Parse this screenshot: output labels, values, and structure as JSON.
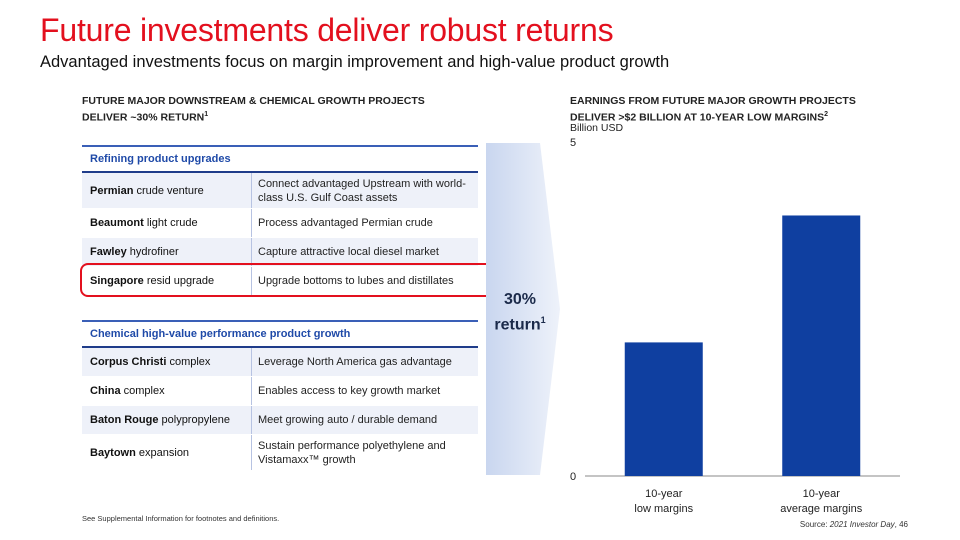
{
  "title": "Future investments deliver robust returns",
  "subtitle": "Advantaged investments focus on margin improvement and high-value product growth",
  "left": {
    "heading_line1": "FUTURE MAJOR DOWNSTREAM & CHEMICAL GROWTH PROJECTS",
    "heading_line2": "DELIVER ~30% RETURN",
    "heading_sup": "1",
    "refining": {
      "header": "Refining product upgrades",
      "rows": [
        {
          "name": "Permian",
          "suffix": " crude venture",
          "desc": "Connect advantaged Upstream with world-class U.S. Gulf Coast assets"
        },
        {
          "name": "Beaumont",
          "suffix": " light crude",
          "desc": "Process advantaged Permian crude"
        },
        {
          "name": "Fawley",
          "suffix": " hydrofiner",
          "desc": "Capture attractive local diesel market"
        },
        {
          "name": "Singapore",
          "suffix": " resid upgrade",
          "desc": "Upgrade bottoms to lubes and distillates"
        }
      ]
    },
    "chemical": {
      "header": "Chemical high-value performance product growth",
      "rows": [
        {
          "name": "Corpus Christi",
          "suffix": " complex",
          "desc": "Leverage North America gas advantage"
        },
        {
          "name": "China",
          "suffix": " complex",
          "desc": "Enables access to key growth market"
        },
        {
          "name": "Baton Rouge",
          "suffix": " polypropylene",
          "desc": "Meet growing auto / durable demand"
        },
        {
          "name": "Baytown",
          "suffix": " expansion",
          "desc": "Sustain performance polyethylene and Vistamaxx™ growth"
        }
      ]
    },
    "return_value": "30%",
    "return_label": "return",
    "return_sup": "1"
  },
  "right": {
    "heading_line1": "EARNINGS FROM FUTURE MAJOR GROWTH PROJECTS",
    "heading_line2": "DELIVER >$2 BILLION AT 10-YEAR LOW MARGINS",
    "heading_sup": "2",
    "unit": "Billion USD"
  },
  "chart_data": {
    "type": "bar",
    "categories": [
      [
        "10-year",
        "low margins"
      ],
      [
        "10-year",
        "average margins"
      ]
    ],
    "values": [
      2.0,
      3.9
    ],
    "ylim": [
      0,
      5
    ],
    "yticks": [
      "0",
      "5"
    ],
    "bar_color": "#0f3fa0",
    "grid": false
  },
  "footnote": "See Supplemental Information for footnotes and definitions.",
  "source_prefix": "Source: ",
  "source_italic": "2021 Investor Day",
  "source_suffix": ", 46",
  "colors": {
    "accent": "#e3101e",
    "navy": "#0f3fa0",
    "table_header": "#1f4aa8"
  }
}
